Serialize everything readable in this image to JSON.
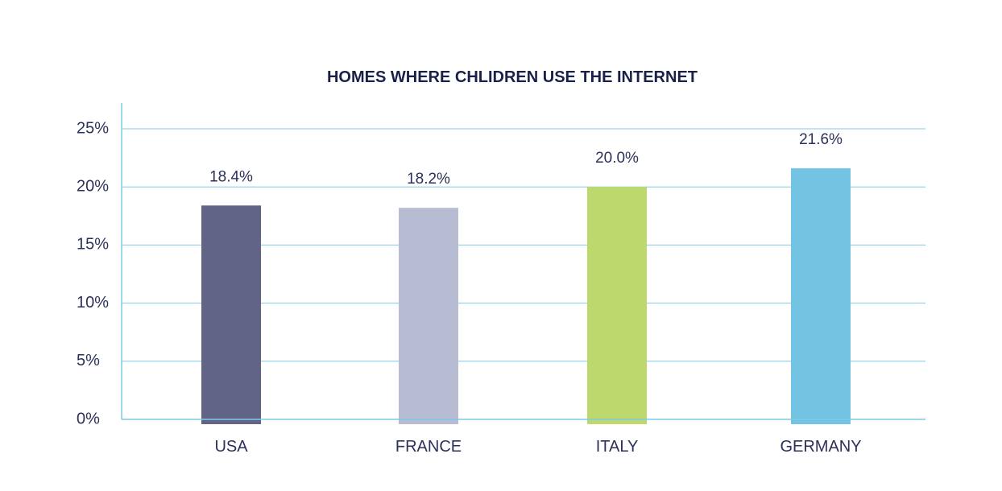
{
  "chart_data": {
    "type": "bar",
    "title": "HOMES WHERE CHLIDREN USE THE INTERNET",
    "xlabel": "",
    "ylabel": "",
    "categories": [
      "USA",
      "FRANCE",
      "ITALY",
      "GERMANY"
    ],
    "values": [
      18.4,
      18.2,
      20.0,
      21.6
    ],
    "data_labels": [
      "18.4%",
      "18.2%",
      "20.0%",
      "21.6%"
    ],
    "colors": [
      "#616485",
      "#b8bcd3",
      "#bdd96e",
      "#73c4e3"
    ],
    "ylim": [
      0,
      25
    ],
    "yticks": [
      0,
      5,
      10,
      15,
      20,
      25
    ],
    "ytick_labels": [
      "0%",
      "5%",
      "10%",
      "15%",
      "20%",
      "25%"
    ],
    "grid": true,
    "legend": "none",
    "axis_color": "#7fc8e6",
    "text_color": "#2b3159"
  }
}
